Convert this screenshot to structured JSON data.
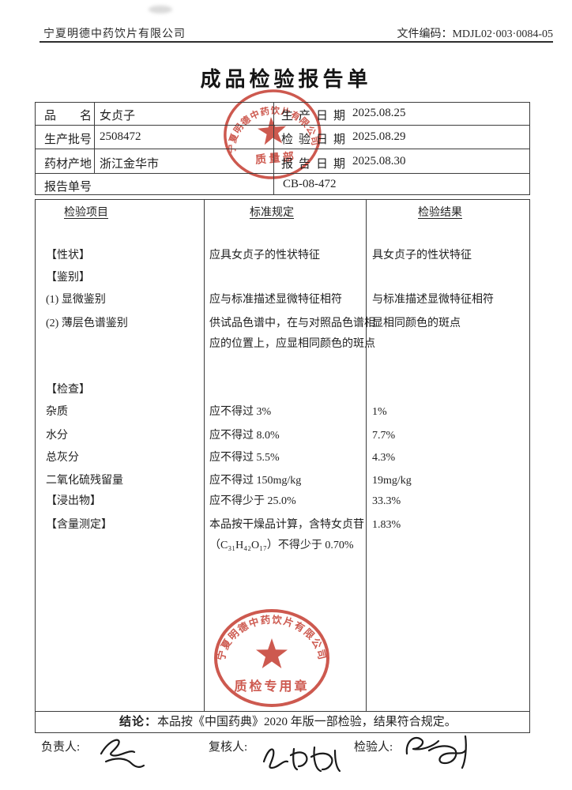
{
  "header": {
    "company": "宁夏明德中药饮片有限公司",
    "doc_code": "文件编码：MDJL02·003·0084-05"
  },
  "title": "成品检验报告单",
  "info_table": {
    "rows": [
      {
        "label": "品　　名",
        "value": "女贞子",
        "right_label": "生产日期",
        "right_value": "2025.08.25"
      },
      {
        "label": "生产批号",
        "value": "2508472",
        "right_label": "检验日期",
        "right_value": "2025.08.29"
      },
      {
        "label": "药材产地",
        "value": "浙江金华市",
        "right_label": "报告日期",
        "right_value": "2025.08.30"
      }
    ],
    "report_no_label": "报告单号",
    "report_no": "CB-08-472"
  },
  "main_table": {
    "headers": [
      "检验项目",
      "标准规定",
      "检验结果"
    ],
    "rows": [
      {
        "item": "【性状】",
        "standard": [
          "应具女贞子的性状特征"
        ],
        "result": [
          "具女贞子的性状特征"
        ]
      },
      {
        "item": "【鉴别】",
        "standard": [],
        "result": []
      },
      {
        "item": "(1) 显微鉴别",
        "standard": [
          "应与标准描述显微特征相符"
        ],
        "result": [
          "与标准描述显微特征相符"
        ]
      },
      {
        "item": "(2) 薄层色谱鉴别",
        "standard": [
          "供试品色谱中，在与对照品色谱相",
          "应的位置上，应显相同颜色的斑点"
        ],
        "result": [
          "显相同颜色的斑点"
        ]
      },
      {
        "item": "【检查】",
        "standard": [],
        "result": []
      },
      {
        "item": "杂质",
        "standard": [
          "应不得过 3%"
        ],
        "result": [
          "1%"
        ]
      },
      {
        "item": "水分",
        "standard": [
          "应不得过 8.0%"
        ],
        "result": [
          "7.7%"
        ]
      },
      {
        "item": "总灰分",
        "standard": [
          "应不得过 5.5%"
        ],
        "result": [
          "4.3%"
        ]
      },
      {
        "item": "二氧化硫残留量",
        "standard": [
          "应不得过 150mg/kg"
        ],
        "result": [
          "19mg/kg"
        ]
      },
      {
        "item": "【浸出物】",
        "standard": [
          "应不得少于 25.0%"
        ],
        "result": [
          "33.3%"
        ]
      },
      {
        "item": "【含量测定】",
        "standard": [
          "本品按干燥品计算，含特女贞苷",
          "（C₃₁H₄₂O₁₇）不得少于 0.70%"
        ],
        "result": [
          "1.83%"
        ]
      }
    ]
  },
  "stamps": {
    "color": "#c43a2e",
    "top": {
      "company": "宁夏明德中药饮片有限公司",
      "dept": "质 量 部"
    },
    "bottom": {
      "company": "宁夏明德中药饮片有限公司",
      "label": "质检专用章"
    }
  },
  "conclusion": {
    "label": "结论：",
    "text": "本品按《中国药典》2020 年版一部检验，结果符合规定。"
  },
  "signatures": {
    "responsible_label": "负责人:",
    "reviewer_label": "复核人:",
    "inspector_label": "检验人:"
  }
}
